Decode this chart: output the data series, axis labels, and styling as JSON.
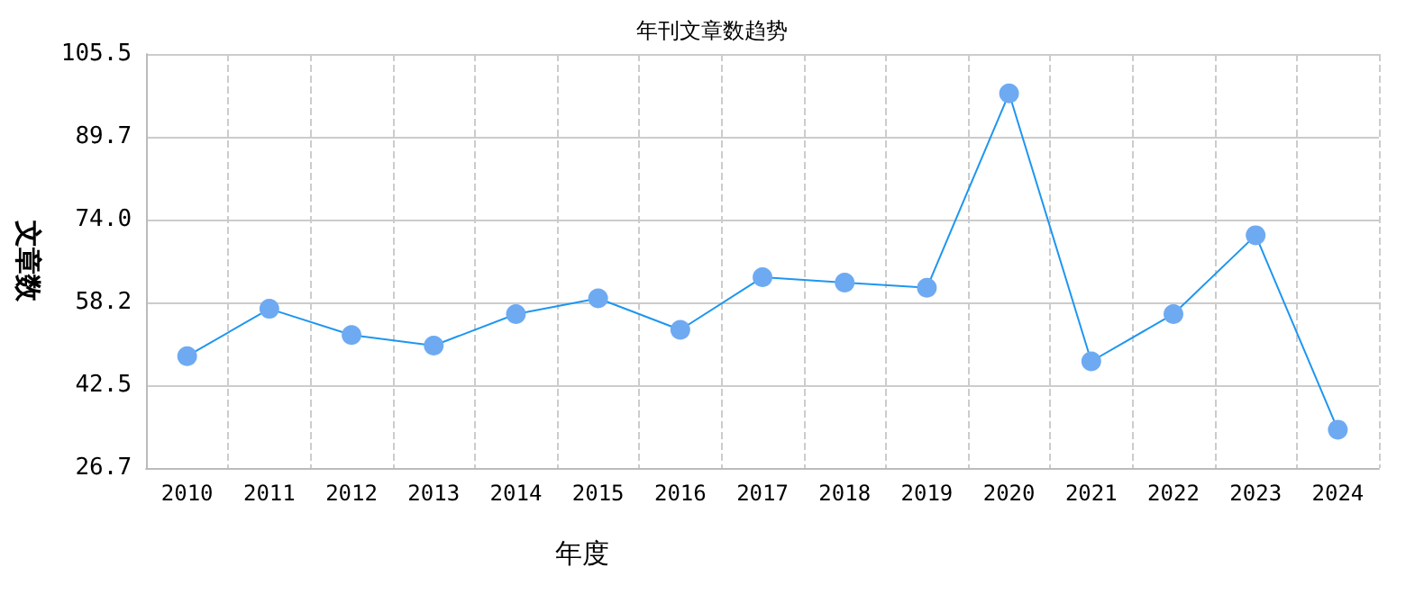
{
  "chart_data": {
    "type": "line",
    "title": "年刊文章数趋势",
    "xlabel": "年度",
    "ylabel": "文章数",
    "categories": [
      "2010",
      "2011",
      "2012",
      "2013",
      "2014",
      "2015",
      "2016",
      "2017",
      "2018",
      "2019",
      "2020",
      "2021",
      "2022",
      "2023",
      "2024"
    ],
    "series": [
      {
        "color": "#1e96f0",
        "values": [
          48,
          57,
          52,
          50,
          56,
          59,
          53,
          63,
          62,
          61,
          98,
          47,
          56,
          71,
          34
        ]
      }
    ],
    "ylim": [
      26.7,
      105.5
    ],
    "yticks": [
      26.7,
      42.5,
      58.2,
      {
        "value": 74,
        "label": "74.0"
      },
      89.7,
      105.5
    ],
    "grid": true,
    "marker": "circle",
    "line_style": "solid"
  }
}
